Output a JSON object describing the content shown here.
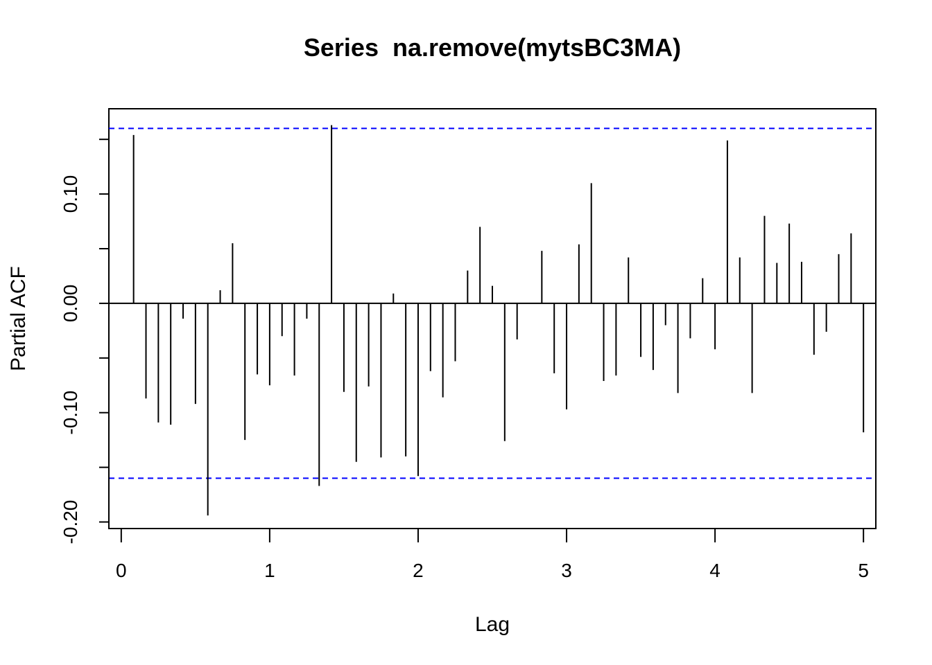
{
  "chart_data": {
    "type": "bar",
    "title": "Series  na.remove(mytsBC3MA)",
    "xlabel": "Lag",
    "ylabel": "Partial ACF",
    "xlim": [
      -0.0833,
      5.0833
    ],
    "ylim": [
      -0.206,
      0.178
    ],
    "x_ticks": [
      0,
      1,
      2,
      3,
      4,
      5
    ],
    "x_tick_labels": [
      "0",
      "1",
      "2",
      "3",
      "4",
      "5"
    ],
    "y_ticks": [
      -0.2,
      -0.1,
      0.0,
      0.1
    ],
    "y_tick_labels": [
      "-0.20",
      "-0.10",
      "0.00",
      "0.10"
    ],
    "confidence_bound": 0.16,
    "colors": {
      "spike": "#000000",
      "ci_line": "#0000ff",
      "zero_line": "#000000"
    },
    "grid": false,
    "lags": [
      0.0833,
      0.1667,
      0.25,
      0.3333,
      0.4167,
      0.5,
      0.5833,
      0.6667,
      0.75,
      0.8333,
      0.9167,
      1.0,
      1.0833,
      1.1667,
      1.25,
      1.3333,
      1.4167,
      1.5,
      1.5833,
      1.6667,
      1.75,
      1.8333,
      1.9167,
      2.0,
      2.0833,
      2.1667,
      2.25,
      2.3333,
      2.4167,
      2.5,
      2.5833,
      2.6667,
      2.75,
      2.8333,
      2.9167,
      3.0,
      3.0833,
      3.1667,
      3.25,
      3.3333,
      3.4167,
      3.5,
      3.5833,
      3.6667,
      3.75,
      3.8333,
      3.9167,
      4.0,
      4.0833,
      4.1667,
      4.25,
      4.3333,
      4.4167,
      4.5,
      4.5833,
      4.6667,
      4.75,
      4.8333,
      4.9167,
      5.0
    ],
    "values": [
      0.154,
      -0.087,
      -0.109,
      -0.111,
      -0.014,
      -0.092,
      -0.194,
      0.012,
      0.055,
      -0.125,
      -0.065,
      -0.075,
      -0.03,
      -0.066,
      -0.014,
      -0.167,
      0.163,
      -0.081,
      -0.145,
      -0.076,
      -0.141,
      0.009,
      -0.14,
      -0.158,
      -0.062,
      -0.086,
      -0.053,
      0.03,
      0.07,
      0.016,
      -0.126,
      -0.033,
      0.0,
      0.048,
      -0.064,
      -0.097,
      0.054,
      0.11,
      -0.071,
      -0.066,
      0.042,
      -0.049,
      -0.061,
      -0.02,
      -0.082,
      -0.032,
      0.023,
      -0.042,
      0.149,
      0.042,
      -0.082,
      0.08,
      0.037,
      0.073,
      0.038,
      -0.047,
      -0.026,
      0.045,
      0.064,
      -0.118
    ]
  }
}
